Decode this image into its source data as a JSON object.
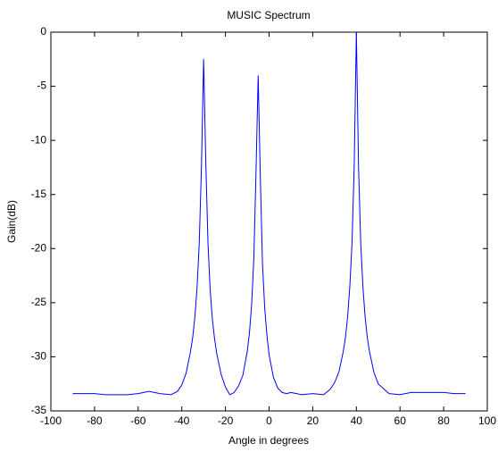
{
  "chart_data": {
    "type": "line",
    "title": "MUSIC Spectrum",
    "x_label": "Angle in degrees",
    "y_label": "Gain(dB)",
    "x": [
      -90,
      -80,
      -75,
      -70,
      -65,
      -60,
      -55,
      -50,
      -45,
      -42,
      -40,
      -38,
      -36,
      -35,
      -34,
      -33,
      -32,
      -31,
      -30,
      -29,
      -28,
      -27,
      -26,
      -25,
      -24,
      -22,
      -20,
      -18,
      -16,
      -14,
      -12,
      -10,
      -9,
      -8,
      -7,
      -6,
      -5,
      -4,
      -3,
      -2,
      -1,
      0,
      2,
      4,
      6,
      8,
      10,
      15,
      20,
      25,
      28,
      30,
      32,
      34,
      35,
      36,
      37,
      38,
      39,
      40,
      41,
      42,
      43,
      44,
      45,
      46,
      48,
      50,
      55,
      60,
      65,
      70,
      75,
      80,
      85,
      90
    ],
    "series": [
      {
        "color": "#0000ff",
        "values": [
          -33.4,
          -33.4,
          -33.5,
          -33.5,
          -33.5,
          -33.4,
          -33.2,
          -33.4,
          -33.5,
          -33.2,
          -32.6,
          -31.5,
          -29.5,
          -28.2,
          -26.3,
          -23.6,
          -19.5,
          -12.5,
          -2.5,
          -12,
          -19.5,
          -23.8,
          -26.5,
          -28.3,
          -29.7,
          -31.6,
          -32.8,
          -33.5,
          -33.3,
          -32.7,
          -31.7,
          -29.5,
          -27.8,
          -25.2,
          -21,
          -13,
          -4,
          -13.5,
          -21.5,
          -25.5,
          -28,
          -29.8,
          -31.9,
          -32.9,
          -33.3,
          -33.4,
          -33.3,
          -33.5,
          -33.4,
          -33.5,
          -33,
          -32.4,
          -31.4,
          -29.5,
          -28.2,
          -26.3,
          -23.5,
          -19.5,
          -12.5,
          0,
          -12.5,
          -19.5,
          -23.5,
          -26.3,
          -28.2,
          -29.5,
          -31.4,
          -32.5,
          -33.4,
          -33.5,
          -33.3,
          -33.3,
          -33.3,
          -33.3,
          -33.4,
          -33.4
        ]
      }
    ],
    "xlim": [
      -100,
      100
    ],
    "xticks": [
      -100,
      -80,
      -60,
      -40,
      -20,
      0,
      20,
      40,
      60,
      80,
      100
    ],
    "ylim": [
      -35,
      0
    ],
    "yticks": [
      -35,
      -30,
      -25,
      -20,
      -15,
      -10,
      -5,
      0
    ]
  }
}
